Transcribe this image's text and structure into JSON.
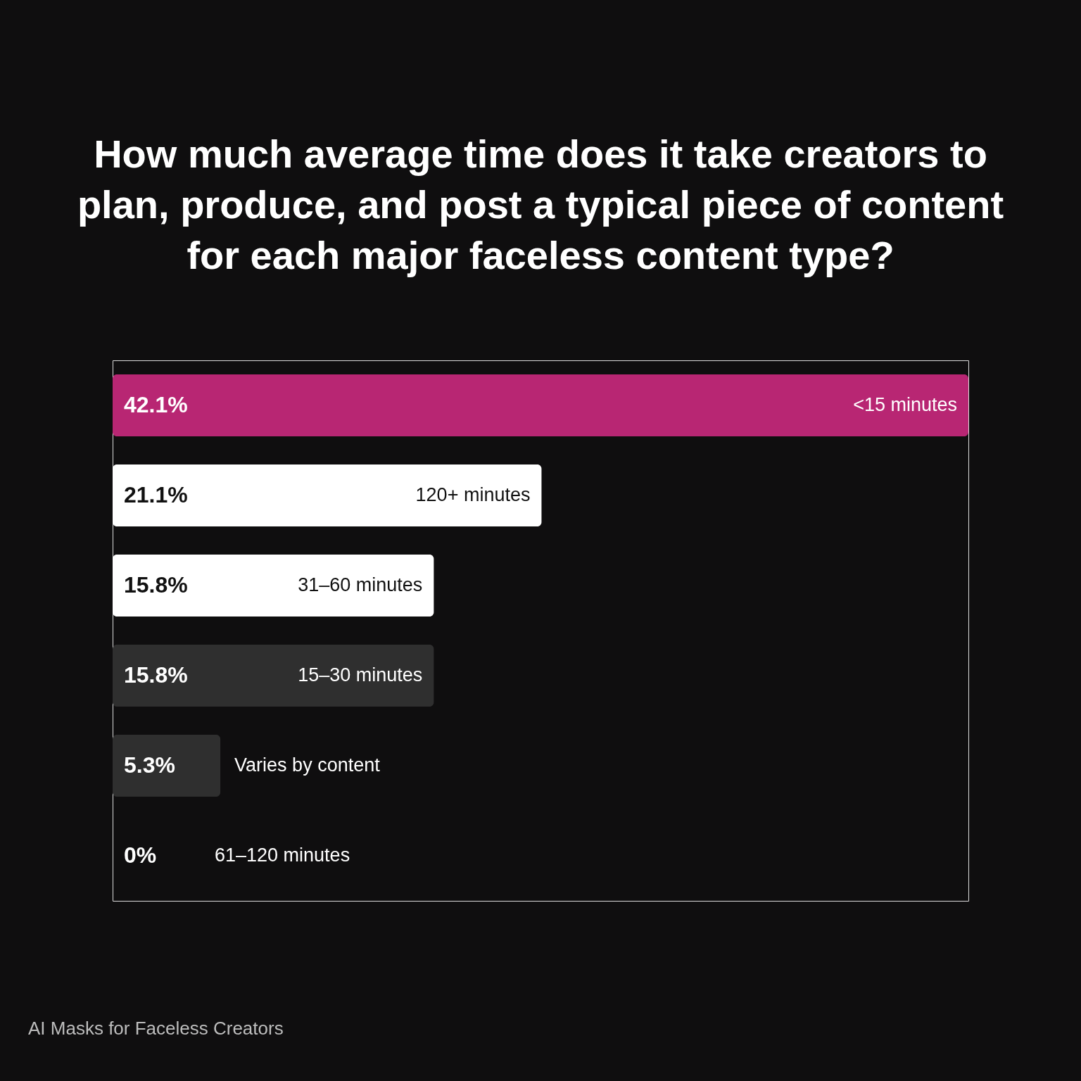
{
  "chart_data": {
    "type": "bar",
    "orientation": "horizontal",
    "title": "How much average time does it take creators to plan, produce, and post a typical piece of content for each major faceless content type?",
    "categories": [
      "<15 minutes",
      "120+ minutes",
      "31–60 minutes",
      "15–30 minutes",
      "Varies by content",
      "61–120 minutes"
    ],
    "values": [
      42.1,
      21.1,
      15.8,
      15.8,
      5.3,
      0
    ],
    "colors": [
      "#b82673",
      "#ffffff",
      "#ffffff",
      "#2f2f2f",
      "#2f2f2f",
      null
    ],
    "value_labels": [
      "42.1%",
      "21.1%",
      "15.8%",
      "15.8%",
      "5.3%",
      "0%"
    ],
    "annotations": [
      "AI Masks for Faceless Creators"
    ]
  }
}
